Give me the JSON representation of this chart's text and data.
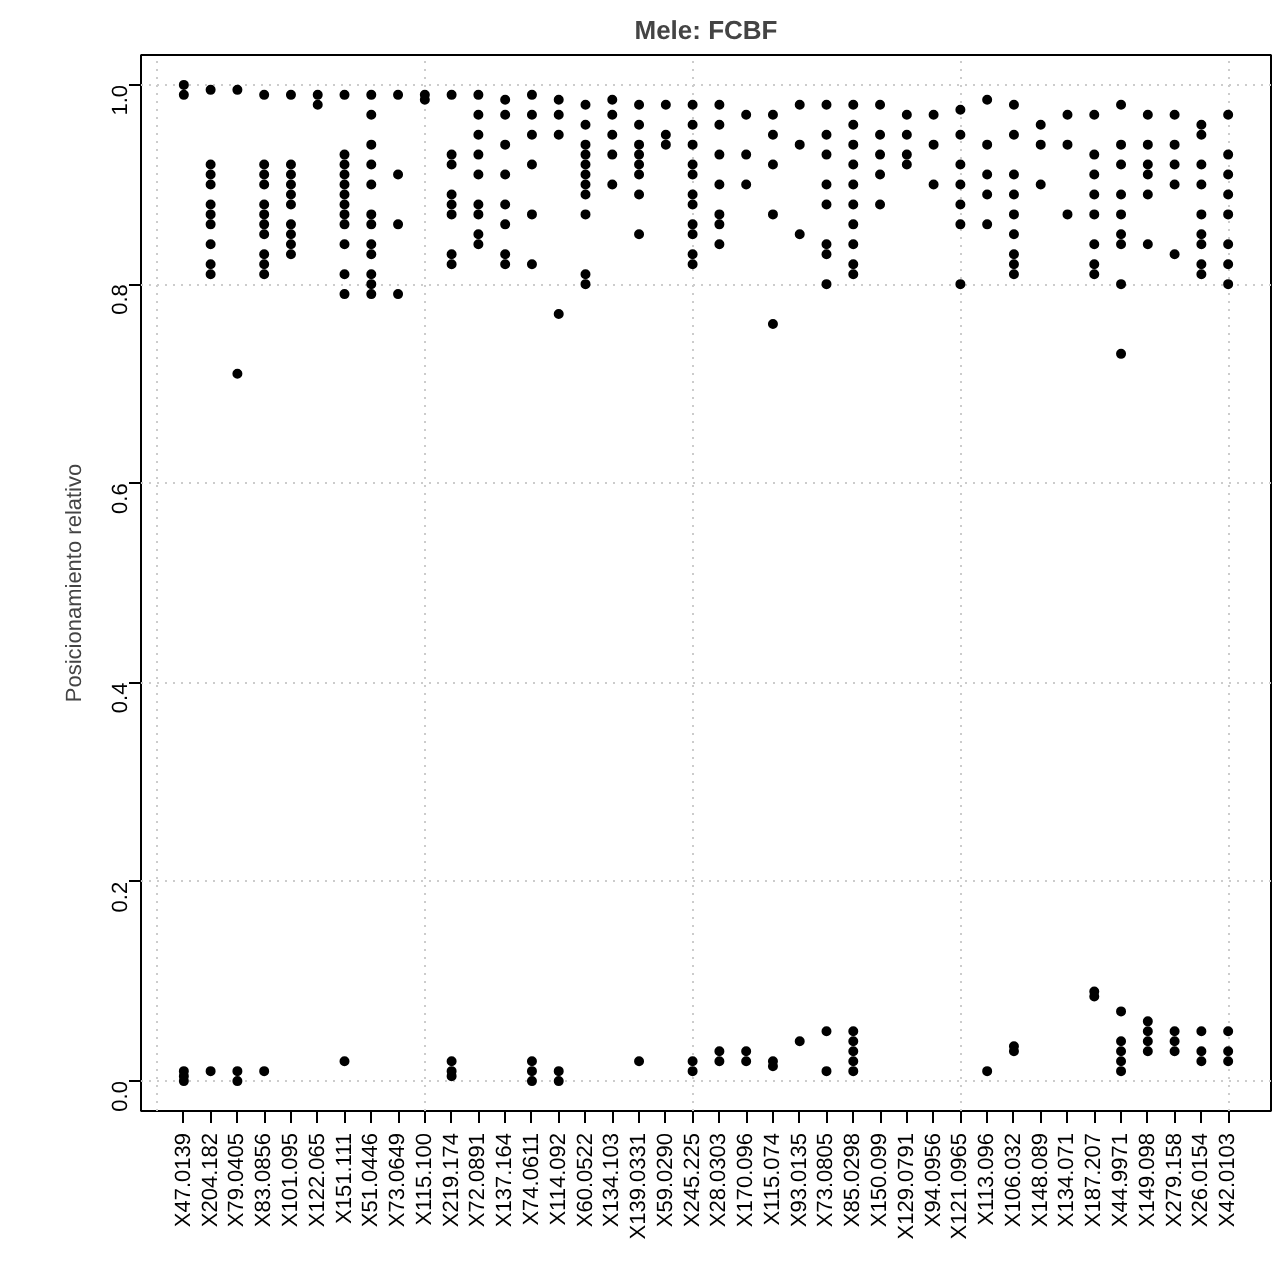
{
  "chart_data": {
    "type": "scatter",
    "title": "Mele: FCBF",
    "ylabel": "Posicionamiento relativo",
    "categories": [
      "X47.0139",
      "X204.182",
      "X79.0405",
      "X83.0856",
      "X101.095",
      "X122.065",
      "X151.111",
      "X51.0446",
      "X73.0649",
      "X115.100",
      "X219.174",
      "X72.0891",
      "X137.164",
      "X74.0611",
      "X114.092",
      "X60.0522",
      "X134.103",
      "X139.0331",
      "X59.0290",
      "X245.225",
      "X28.0303",
      "X170.096",
      "X115.074",
      "X93.0135",
      "X73.0805",
      "X85.0298",
      "X150.099",
      "X129.0791",
      "X94.0956",
      "X121.0965",
      "X113.096",
      "X106.032",
      "X148.089",
      "X134.071",
      "X187.207",
      "X44.9971",
      "X149.098",
      "X279.158",
      "X26.0154",
      "X42.0103"
    ],
    "ylim": [
      -0.03,
      1.03
    ],
    "yticks": [
      {
        "value": 0,
        "label": "0.0"
      },
      0.2,
      0.4,
      0.6,
      0.8,
      {
        "value": 1,
        "label": "1.0"
      }
    ],
    "grid": true,
    "marker": "circle",
    "series": [
      {
        "color": "#000000",
        "x": [
          "X47.0139",
          "X47.0139",
          "X47.0139",
          "X47.0139",
          "X47.0139"
        ],
        "values": [
          1.0,
          0.99,
          0.01,
          0.005,
          0.0
        ]
      },
      {
        "color": "#000000",
        "x": [
          "X204.182",
          "X204.182",
          "X204.182",
          "X204.182",
          "X204.182",
          "X204.182",
          "X204.182",
          "X204.182",
          "X204.182",
          "X204.182",
          "X204.182"
        ],
        "values": [
          0.995,
          0.92,
          0.91,
          0.9,
          0.88,
          0.87,
          0.86,
          0.84,
          0.82,
          0.81,
          0.01
        ]
      },
      {
        "color": "#000000",
        "x": [
          "X79.0405",
          "X79.0405",
          "X79.0405",
          "X79.0405"
        ],
        "values": [
          0.995,
          0.71,
          0.01,
          0.0
        ]
      },
      {
        "color": "#000000",
        "x": [
          "X83.0856",
          "X83.0856",
          "X83.0856",
          "X83.0856",
          "X83.0856",
          "X83.0856",
          "X83.0856",
          "X83.0856",
          "X83.0856",
          "X83.0856",
          "X83.0856",
          "X83.0856"
        ],
        "values": [
          0.99,
          0.92,
          0.91,
          0.9,
          0.88,
          0.87,
          0.86,
          0.85,
          0.83,
          0.82,
          0.81,
          0.01
        ]
      },
      {
        "color": "#000000",
        "x": [
          "X101.095",
          "X101.095",
          "X101.095",
          "X101.095",
          "X101.095",
          "X101.095",
          "X101.095",
          "X101.095",
          "X101.095",
          "X101.095"
        ],
        "values": [
          0.99,
          0.92,
          0.91,
          0.9,
          0.89,
          0.88,
          0.86,
          0.85,
          0.84,
          0.83
        ]
      },
      {
        "color": "#000000",
        "x": [
          "X122.065",
          "X122.065"
        ],
        "values": [
          0.99,
          0.98
        ]
      },
      {
        "color": "#000000",
        "x": [
          "X151.111",
          "X151.111",
          "X151.111",
          "X151.111",
          "X151.111",
          "X151.111",
          "X151.111",
          "X151.111",
          "X151.111",
          "X151.111",
          "X151.111",
          "X151.111",
          "X151.111"
        ],
        "values": [
          0.99,
          0.93,
          0.92,
          0.91,
          0.9,
          0.89,
          0.88,
          0.87,
          0.86,
          0.84,
          0.81,
          0.79,
          0.02
        ]
      },
      {
        "color": "#000000",
        "x": [
          "X51.0446",
          "X51.0446",
          "X51.0446",
          "X51.0446",
          "X51.0446",
          "X51.0446",
          "X51.0446",
          "X51.0446",
          "X51.0446",
          "X51.0446",
          "X51.0446",
          "X51.0446"
        ],
        "values": [
          0.99,
          0.97,
          0.94,
          0.92,
          0.9,
          0.87,
          0.86,
          0.84,
          0.83,
          0.81,
          0.8,
          0.79
        ]
      },
      {
        "color": "#000000",
        "x": [
          "X73.0649",
          "X73.0649",
          "X73.0649",
          "X73.0649"
        ],
        "values": [
          0.99,
          0.91,
          0.86,
          0.79
        ]
      },
      {
        "color": "#000000",
        "x": [
          "X115.100",
          "X115.100"
        ],
        "values": [
          0.99,
          0.985
        ]
      },
      {
        "color": "#000000",
        "x": [
          "X219.174",
          "X219.174",
          "X219.174",
          "X219.174",
          "X219.174",
          "X219.174",
          "X219.174",
          "X219.174",
          "X219.174",
          "X219.174",
          "X219.174"
        ],
        "values": [
          0.99,
          0.93,
          0.92,
          0.89,
          0.88,
          0.87,
          0.83,
          0.82,
          0.02,
          0.01,
          0.005
        ]
      },
      {
        "color": "#000000",
        "x": [
          "X72.0891",
          "X72.0891",
          "X72.0891",
          "X72.0891",
          "X72.0891",
          "X72.0891",
          "X72.0891",
          "X72.0891",
          "X72.0891"
        ],
        "values": [
          0.99,
          0.97,
          0.95,
          0.93,
          0.91,
          0.88,
          0.87,
          0.85,
          0.84
        ]
      },
      {
        "color": "#000000",
        "x": [
          "X137.164",
          "X137.164",
          "X137.164",
          "X137.164",
          "X137.164",
          "X137.164",
          "X137.164",
          "X137.164"
        ],
        "values": [
          0.985,
          0.97,
          0.94,
          0.91,
          0.88,
          0.86,
          0.83,
          0.82
        ]
      },
      {
        "color": "#000000",
        "x": [
          "X74.0611",
          "X74.0611",
          "X74.0611",
          "X74.0611",
          "X74.0611",
          "X74.0611",
          "X74.0611",
          "X74.0611",
          "X74.0611"
        ],
        "values": [
          0.99,
          0.97,
          0.95,
          0.92,
          0.87,
          0.82,
          0.02,
          0.01,
          0.0
        ]
      },
      {
        "color": "#000000",
        "x": [
          "X114.092",
          "X114.092",
          "X114.092",
          "X114.092",
          "X114.092",
          "X114.092"
        ],
        "values": [
          0.985,
          0.97,
          0.95,
          0.77,
          0.01,
          0.0
        ]
      },
      {
        "color": "#000000",
        "x": [
          "X60.0522",
          "X60.0522",
          "X60.0522",
          "X60.0522",
          "X60.0522",
          "X60.0522",
          "X60.0522",
          "X60.0522",
          "X60.0522",
          "X60.0522",
          "X60.0522"
        ],
        "values": [
          0.98,
          0.96,
          0.94,
          0.93,
          0.92,
          0.91,
          0.9,
          0.89,
          0.87,
          0.81,
          0.8
        ]
      },
      {
        "color": "#000000",
        "x": [
          "X134.103",
          "X134.103",
          "X134.103",
          "X134.103",
          "X134.103"
        ],
        "values": [
          0.985,
          0.97,
          0.95,
          0.93,
          0.9
        ]
      },
      {
        "color": "#000000",
        "x": [
          "X139.0331",
          "X139.0331",
          "X139.0331",
          "X139.0331",
          "X139.0331",
          "X139.0331",
          "X139.0331",
          "X139.0331",
          "X139.0331"
        ],
        "values": [
          0.98,
          0.96,
          0.94,
          0.93,
          0.92,
          0.91,
          0.89,
          0.85,
          0.02
        ]
      },
      {
        "color": "#000000",
        "x": [
          "X59.0290",
          "X59.0290",
          "X59.0290"
        ],
        "values": [
          0.98,
          0.95,
          0.94
        ]
      },
      {
        "color": "#000000",
        "x": [
          "X245.225",
          "X245.225",
          "X245.225",
          "X245.225",
          "X245.225",
          "X245.225",
          "X245.225",
          "X245.225",
          "X245.225",
          "X245.225",
          "X245.225",
          "X245.225",
          "X245.225"
        ],
        "values": [
          0.98,
          0.96,
          0.94,
          0.92,
          0.91,
          0.89,
          0.88,
          0.86,
          0.85,
          0.83,
          0.82,
          0.02,
          0.01
        ]
      },
      {
        "color": "#000000",
        "x": [
          "X28.0303",
          "X28.0303",
          "X28.0303",
          "X28.0303",
          "X28.0303",
          "X28.0303",
          "X28.0303",
          "X28.0303",
          "X28.0303"
        ],
        "values": [
          0.98,
          0.96,
          0.93,
          0.9,
          0.87,
          0.86,
          0.84,
          0.03,
          0.02
        ]
      },
      {
        "color": "#000000",
        "x": [
          "X170.096",
          "X170.096",
          "X170.096",
          "X170.096",
          "X170.096"
        ],
        "values": [
          0.97,
          0.93,
          0.9,
          0.03,
          0.02
        ]
      },
      {
        "color": "#000000",
        "x": [
          "X115.074",
          "X115.074",
          "X115.074",
          "X115.074",
          "X115.074",
          "X115.074",
          "X115.074"
        ],
        "values": [
          0.97,
          0.95,
          0.92,
          0.87,
          0.76,
          0.02,
          0.015
        ]
      },
      {
        "color": "#000000",
        "x": [
          "X93.0135",
          "X93.0135",
          "X93.0135",
          "X93.0135"
        ],
        "values": [
          0.98,
          0.94,
          0.85,
          0.04
        ]
      },
      {
        "color": "#000000",
        "x": [
          "X73.0805",
          "X73.0805",
          "X73.0805",
          "X73.0805",
          "X73.0805",
          "X73.0805",
          "X73.0805",
          "X73.0805",
          "X73.0805",
          "X73.0805"
        ],
        "values": [
          0.98,
          0.95,
          0.93,
          0.9,
          0.88,
          0.84,
          0.83,
          0.8,
          0.05,
          0.01
        ]
      },
      {
        "color": "#000000",
        "x": [
          "X85.0298",
          "X85.0298",
          "X85.0298",
          "X85.0298",
          "X85.0298",
          "X85.0298",
          "X85.0298",
          "X85.0298",
          "X85.0298",
          "X85.0298",
          "X85.0298",
          "X85.0298",
          "X85.0298",
          "X85.0298",
          "X85.0298"
        ],
        "values": [
          0.98,
          0.96,
          0.94,
          0.92,
          0.9,
          0.88,
          0.86,
          0.84,
          0.82,
          0.81,
          0.05,
          0.04,
          0.03,
          0.02,
          0.01
        ]
      },
      {
        "color": "#000000",
        "x": [
          "X150.099",
          "X150.099",
          "X150.099",
          "X150.099",
          "X150.099"
        ],
        "values": [
          0.98,
          0.95,
          0.93,
          0.91,
          0.88
        ]
      },
      {
        "color": "#000000",
        "x": [
          "X129.0791",
          "X129.0791",
          "X129.0791",
          "X129.0791"
        ],
        "values": [
          0.97,
          0.95,
          0.93,
          0.92
        ]
      },
      {
        "color": "#000000",
        "x": [
          "X94.0956",
          "X94.0956",
          "X94.0956"
        ],
        "values": [
          0.97,
          0.94,
          0.9
        ]
      },
      {
        "color": "#000000",
        "x": [
          "X121.0965",
          "X121.0965",
          "X121.0965",
          "X121.0965",
          "X121.0965",
          "X121.0965",
          "X121.0965"
        ],
        "values": [
          0.975,
          0.95,
          0.92,
          0.9,
          0.88,
          0.86,
          0.8
        ]
      },
      {
        "color": "#000000",
        "x": [
          "X113.096",
          "X113.096",
          "X113.096",
          "X113.096",
          "X113.096",
          "X113.096"
        ],
        "values": [
          0.985,
          0.94,
          0.91,
          0.89,
          0.86,
          0.01
        ]
      },
      {
        "color": "#000000",
        "x": [
          "X106.032",
          "X106.032",
          "X106.032",
          "X106.032",
          "X106.032",
          "X106.032",
          "X106.032",
          "X106.032",
          "X106.032",
          "X106.032",
          "X106.032"
        ],
        "values": [
          0.98,
          0.95,
          0.91,
          0.89,
          0.87,
          0.85,
          0.83,
          0.82,
          0.81,
          0.035,
          0.03
        ]
      },
      {
        "color": "#000000",
        "x": [
          "X148.089",
          "X148.089",
          "X148.089"
        ],
        "values": [
          0.96,
          0.94,
          0.9
        ]
      },
      {
        "color": "#000000",
        "x": [
          "X134.071",
          "X134.071",
          "X134.071"
        ],
        "values": [
          0.97,
          0.94,
          0.87
        ]
      },
      {
        "color": "#000000",
        "x": [
          "X187.207",
          "X187.207",
          "X187.207",
          "X187.207",
          "X187.207",
          "X187.207",
          "X187.207",
          "X187.207",
          "X187.207",
          "X187.207"
        ],
        "values": [
          0.97,
          0.93,
          0.91,
          0.89,
          0.87,
          0.84,
          0.82,
          0.81,
          0.09,
          0.085
        ]
      },
      {
        "color": "#000000",
        "x": [
          "X44.9971",
          "X44.9971",
          "X44.9971",
          "X44.9971",
          "X44.9971",
          "X44.9971",
          "X44.9971",
          "X44.9971",
          "X44.9971",
          "X44.9971",
          "X44.9971",
          "X44.9971",
          "X44.9971",
          "X44.9971"
        ],
        "values": [
          0.98,
          0.94,
          0.92,
          0.89,
          0.87,
          0.85,
          0.84,
          0.8,
          0.73,
          0.07,
          0.04,
          0.03,
          0.02,
          0.01
        ]
      },
      {
        "color": "#000000",
        "x": [
          "X149.098",
          "X149.098",
          "X149.098",
          "X149.098",
          "X149.098",
          "X149.098",
          "X149.098",
          "X149.098",
          "X149.098",
          "X149.098"
        ],
        "values": [
          0.97,
          0.94,
          0.92,
          0.91,
          0.89,
          0.84,
          0.06,
          0.05,
          0.04,
          0.03
        ]
      },
      {
        "color": "#000000",
        "x": [
          "X279.158",
          "X279.158",
          "X279.158",
          "X279.158",
          "X279.158",
          "X279.158",
          "X279.158",
          "X279.158"
        ],
        "values": [
          0.97,
          0.94,
          0.92,
          0.9,
          0.83,
          0.05,
          0.04,
          0.03
        ]
      },
      {
        "color": "#000000",
        "x": [
          "X26.0154",
          "X26.0154",
          "X26.0154",
          "X26.0154",
          "X26.0154",
          "X26.0154",
          "X26.0154",
          "X26.0154",
          "X26.0154",
          "X26.0154",
          "X26.0154",
          "X26.0154"
        ],
        "values": [
          0.96,
          0.95,
          0.92,
          0.9,
          0.87,
          0.85,
          0.84,
          0.82,
          0.81,
          0.05,
          0.03,
          0.02
        ]
      },
      {
        "color": "#000000",
        "x": [
          "X42.0103",
          "X42.0103",
          "X42.0103",
          "X42.0103",
          "X42.0103",
          "X42.0103",
          "X42.0103",
          "X42.0103",
          "X42.0103",
          "X42.0103",
          "X42.0103"
        ],
        "values": [
          0.97,
          0.93,
          0.91,
          0.89,
          0.87,
          0.84,
          0.82,
          0.8,
          0.05,
          0.03,
          0.02
        ]
      }
    ]
  }
}
